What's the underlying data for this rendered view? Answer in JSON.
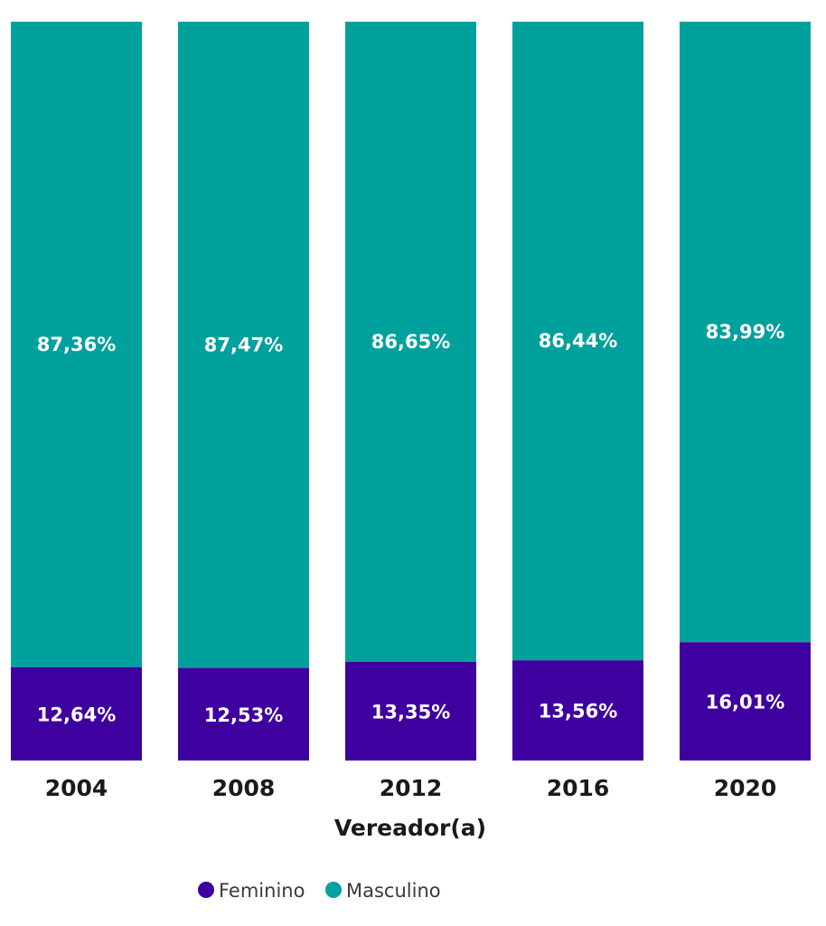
{
  "chart_data": {
    "type": "bar",
    "stacked": true,
    "normalized": true,
    "categories": [
      "2004",
      "2008",
      "2012",
      "2016",
      "2020"
    ],
    "series": [
      {
        "name": "Feminino",
        "color": "#3F00A0",
        "values": [
          12.64,
          12.53,
          13.35,
          13.56,
          16.01
        ],
        "labels": [
          "12,64%",
          "12,53%",
          "13,35%",
          "13,56%",
          "16,01%"
        ]
      },
      {
        "name": "Masculino",
        "color": "#00A19C",
        "values": [
          87.36,
          87.47,
          86.65,
          86.44,
          83.99
        ],
        "labels": [
          "87,36%",
          "87,47%",
          "86,65%",
          "86,44%",
          "83,99%"
        ]
      }
    ],
    "xlabel": "Vereador(a)",
    "ylabel": "",
    "ylim": [
      0,
      100
    ],
    "grid": false,
    "legend": "bottom"
  }
}
